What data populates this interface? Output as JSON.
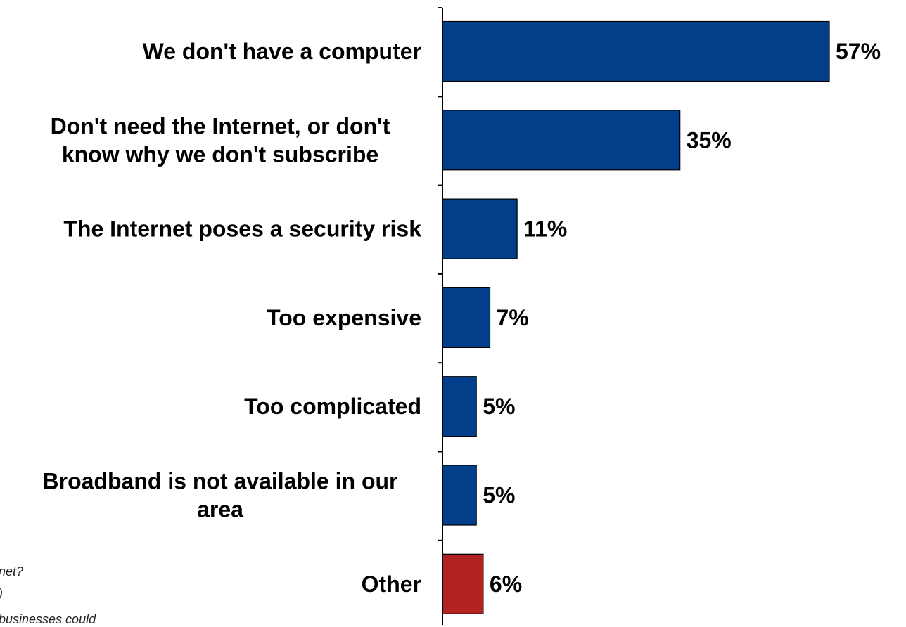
{
  "chart_data": {
    "type": "bar",
    "orientation": "horizontal",
    "categories": [
      [
        "We don't have a computer"
      ],
      [
        "Don't need the Internet, or don't",
        "know why we don't subscribe"
      ],
      [
        "The Internet poses a security risk"
      ],
      [
        "Too expensive"
      ],
      [
        "Too complicated"
      ],
      [
        "Broadband is not available in our",
        "area"
      ],
      [
        "Other"
      ]
    ],
    "values": [
      57,
      35,
      11,
      7,
      5,
      5,
      6
    ],
    "value_labels": [
      "57%",
      "35%",
      "11%",
      "7%",
      "5%",
      "5%",
      "6%"
    ],
    "bar_colors": [
      "#023E8A",
      "#023E8A",
      "#023E8A",
      "#023E8A",
      "#023E8A",
      "#023E8A",
      "#B22222"
    ],
    "value_unit": "%",
    "grid": false,
    "legend": "none"
  },
  "footnotes": [
    "net?",
    ")",
    "businesses could"
  ]
}
